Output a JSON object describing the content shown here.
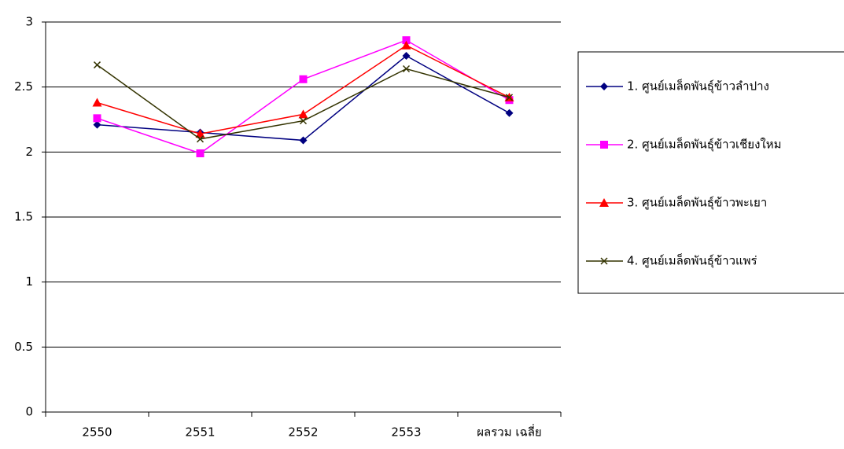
{
  "chart_data": {
    "type": "line",
    "categories": [
      "2550",
      "2551",
      "2552",
      "2553",
      "ผลรวม เฉลี่ย"
    ],
    "series": [
      {
        "name": "1. ศูนย์เมล็ดพันธุ์ข้าวลำปาง",
        "color": "#000080",
        "marker": "diamond",
        "values": [
          2.21,
          2.15,
          2.09,
          2.74,
          2.3
        ]
      },
      {
        "name": "2. ศูนย์เมล็ดพันธุ์ข้าวเชียงใหม",
        "color": "#ff00ff",
        "marker": "square",
        "values": [
          2.26,
          1.99,
          2.56,
          2.86,
          2.4
        ]
      },
      {
        "name": "3. ศูนย์เมล็ดพันธุ์ข้าวพะเยา",
        "color": "#ff0000",
        "marker": "triangle",
        "values": [
          2.38,
          2.14,
          2.29,
          2.82,
          2.42
        ]
      },
      {
        "name": "4. ศูนย์เมล็ดพันธุ์ข้าวแพร่",
        "color": "#333300",
        "marker": "x",
        "values": [
          2.67,
          2.1,
          2.24,
          2.64,
          2.42
        ]
      }
    ],
    "ylim": [
      0,
      3
    ],
    "yticks": [
      0,
      0.5,
      1,
      1.5,
      2,
      2.5,
      3
    ],
    "grid": true,
    "legend": "right"
  }
}
